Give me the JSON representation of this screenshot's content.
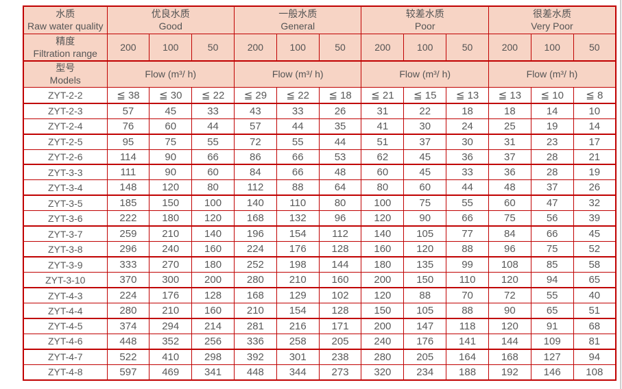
{
  "colors": {
    "border": "#c00000",
    "header_bg": "#f7d4c5",
    "header_text": "#545454",
    "cell_text": "#595959"
  },
  "table": {
    "corner": {
      "zh": "水质",
      "en": "Raw water quality"
    },
    "quality_groups": [
      {
        "zh": "优良水质",
        "en": "Good"
      },
      {
        "zh": "一般水质",
        "en": "General"
      },
      {
        "zh": "较差水质",
        "en": "Poor"
      },
      {
        "zh": "很差水质",
        "en": "Very Poor"
      }
    ],
    "precision": {
      "zh": "精度",
      "en": "Filtration range",
      "values": [
        "200",
        "100",
        "50"
      ]
    },
    "models_header": {
      "zh": "型号",
      "en": "Models"
    },
    "flow_label": "Flow (m³/ h)",
    "rows": [
      {
        "model": "ZYT-2-2",
        "values": [
          "≦ 38",
          "≦ 30",
          "≦ 22",
          "≦ 29",
          "≦ 22",
          "≦ 18",
          "≦ 21",
          "≦ 15",
          "≦ 13",
          "≦ 13",
          "≦ 10",
          "≦ 8"
        ]
      },
      {
        "model": "ZYT-2-3",
        "values": [
          57,
          45,
          33,
          43,
          33,
          26,
          31,
          22,
          18,
          18,
          14,
          10
        ]
      },
      {
        "model": "ZYT-2-4",
        "values": [
          76,
          60,
          44,
          57,
          44,
          35,
          41,
          30,
          24,
          25,
          19,
          14
        ]
      },
      {
        "model": "ZYT-2-5",
        "values": [
          95,
          75,
          55,
          72,
          55,
          44,
          51,
          37,
          30,
          31,
          23,
          17
        ]
      },
      {
        "model": "ZYT-2-6",
        "values": [
          114,
          90,
          66,
          86,
          66,
          53,
          62,
          45,
          36,
          37,
          28,
          21
        ]
      },
      {
        "model": "ZYT-3-3",
        "values": [
          111,
          90,
          60,
          84,
          66,
          48,
          60,
          45,
          33,
          36,
          28,
          19
        ]
      },
      {
        "model": "ZYT-3-4",
        "values": [
          148,
          120,
          80,
          112,
          88,
          64,
          80,
          60,
          44,
          48,
          37,
          26
        ]
      },
      {
        "model": "ZYT-3-5",
        "values": [
          185,
          150,
          100,
          140,
          110,
          80,
          100,
          75,
          55,
          60,
          47,
          32
        ]
      },
      {
        "model": "ZYT-3-6",
        "values": [
          222,
          180,
          120,
          168,
          132,
          96,
          120,
          90,
          66,
          75,
          56,
          39
        ]
      },
      {
        "model": "ZYT-3-7",
        "values": [
          259,
          210,
          140,
          196,
          154,
          112,
          140,
          105,
          77,
          84,
          66,
          45
        ]
      },
      {
        "model": "ZYT-3-8",
        "values": [
          296,
          240,
          160,
          224,
          176,
          128,
          160,
          120,
          88,
          96,
          75,
          52
        ]
      },
      {
        "model": "ZYT-3-9",
        "values": [
          333,
          270,
          180,
          252,
          198,
          144,
          180,
          135,
          99,
          108,
          85,
          58
        ]
      },
      {
        "model": "ZYT-3-10",
        "values": [
          370,
          300,
          200,
          280,
          210,
          160,
          200,
          150,
          110,
          120,
          94,
          65
        ]
      },
      {
        "model": "ZYT-4-3",
        "values": [
          224,
          176,
          128,
          168,
          129,
          102,
          120,
          88,
          70,
          72,
          55,
          40
        ]
      },
      {
        "model": "ZYT-4-4",
        "values": [
          280,
          210,
          160,
          210,
          154,
          128,
          150,
          105,
          88,
          90,
          65,
          51
        ]
      },
      {
        "model": "ZYT-4-5",
        "values": [
          374,
          294,
          214,
          281,
          216,
          171,
          200,
          147,
          118,
          120,
          91,
          68
        ]
      },
      {
        "model": "ZYT-4-6",
        "values": [
          448,
          352,
          256,
          336,
          258,
          205,
          240,
          176,
          141,
          144,
          109,
          81
        ]
      },
      {
        "model": "ZYT-4-7",
        "values": [
          522,
          410,
          298,
          392,
          301,
          238,
          280,
          205,
          164,
          168,
          127,
          94
        ]
      },
      {
        "model": "ZYT-4-8",
        "values": [
          597,
          469,
          341,
          448,
          344,
          273,
          320,
          234,
          188,
          192,
          146,
          108
        ]
      }
    ]
  }
}
